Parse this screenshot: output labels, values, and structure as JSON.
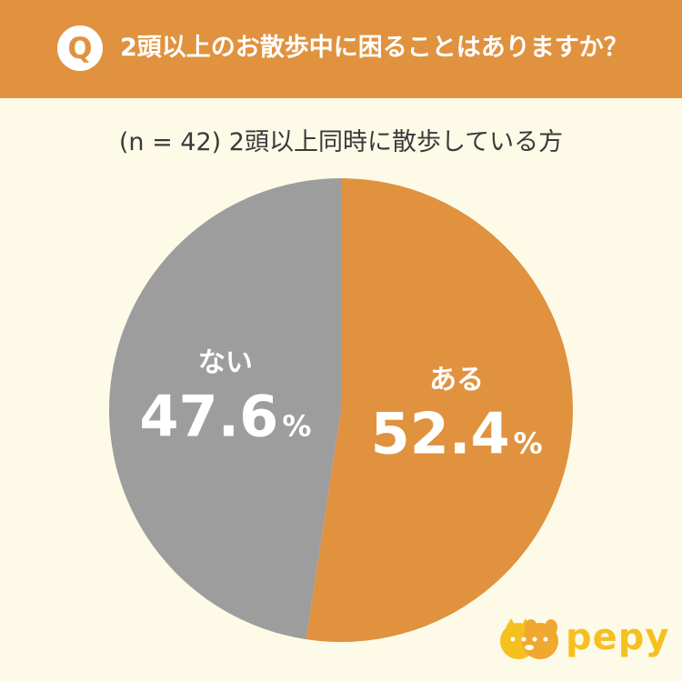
{
  "header": {
    "badge": "Q",
    "question": "2頭以上のお散歩中に困ることはありますか？",
    "bg_color": "#e0923f"
  },
  "subtitle": "(n = 42) 2頭以上同時に散歩している方",
  "chart_data": {
    "type": "pie",
    "title": "2頭以上のお散歩中に困ることはありますか？",
    "subtitle": "(n = 42) 2頭以上同時に散歩している方",
    "slices": [
      {
        "label": "ある",
        "value": 52.4,
        "display": "52.4",
        "unit": "%",
        "color": "#e0923f"
      },
      {
        "label": "ない",
        "value": 47.6,
        "display": "47.6",
        "unit": "%",
        "color": "#9d9d9d"
      }
    ],
    "start_angle_deg": 0,
    "direction": "clockwise"
  },
  "logo": {
    "text": "pepy",
    "icon": "dog-cat-logo-icon",
    "color": "#f5c020"
  }
}
